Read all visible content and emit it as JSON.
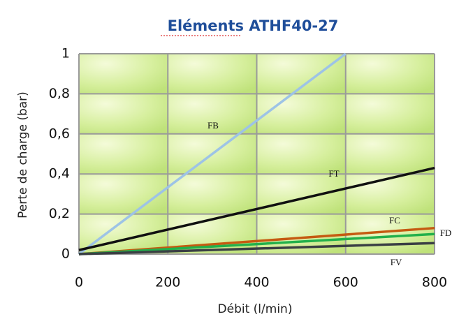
{
  "chart_data": {
    "type": "line",
    "title": "Eléments ATHF40-27",
    "x_label": "Débit (l/min)",
    "y_label": "Perte de charge (bar)",
    "xlim": [
      0,
      800
    ],
    "xticks": [
      0,
      200,
      400,
      600,
      800
    ],
    "ylim": [
      0,
      1
    ],
    "yticks": [
      0,
      {
        "value": 0.2,
        "label": "0,2"
      },
      {
        "value": 0.4,
        "label": "0,4"
      },
      {
        "value": 0.6,
        "label": "0,6"
      },
      {
        "value": 0.8,
        "label": "0,8"
      },
      1
    ],
    "grid": true,
    "series": [
      {
        "name": "FB",
        "color": "#9dc3e6",
        "x": [
          0,
          600
        ],
        "values": [
          0,
          1
        ]
      },
      {
        "name": "FT",
        "color": "#111111",
        "x": [
          0,
          800
        ],
        "values": [
          0.02,
          0.43
        ]
      },
      {
        "name": "FC",
        "color": "#c55a11",
        "x": [
          0,
          800
        ],
        "values": [
          0,
          0.13
        ]
      },
      {
        "name": "FD",
        "color": "#22b04b",
        "x": [
          0,
          800
        ],
        "values": [
          0,
          0.1
        ]
      },
      {
        "name": "FV",
        "color": "#3a3f44",
        "x": [
          0,
          800
        ],
        "values": [
          0,
          0.055
        ]
      }
    ]
  }
}
